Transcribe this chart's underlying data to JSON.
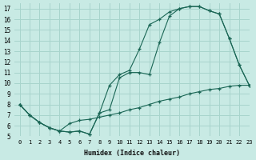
{
  "xlabel": "Humidex (Indice chaleur)",
  "xlim": [
    -0.5,
    23
  ],
  "ylim": [
    5,
    17.5
  ],
  "xticks": [
    0,
    1,
    2,
    3,
    4,
    5,
    6,
    7,
    8,
    9,
    10,
    11,
    12,
    13,
    14,
    15,
    16,
    17,
    18,
    19,
    20,
    21,
    22,
    23
  ],
  "yticks": [
    5,
    6,
    7,
    8,
    9,
    10,
    11,
    12,
    13,
    14,
    15,
    16,
    17
  ],
  "bg_color": "#c8eae4",
  "grid_color": "#a8d4cc",
  "line_color": "#1a6655",
  "line1_x": [
    0,
    1,
    2,
    3,
    4,
    5,
    6,
    7,
    8,
    9,
    10,
    11,
    12,
    13,
    14,
    15,
    16,
    17,
    18,
    19,
    20,
    21,
    22,
    23
  ],
  "line1_y": [
    8.0,
    7.0,
    6.3,
    5.8,
    5.5,
    5.4,
    5.5,
    5.2,
    7.2,
    9.8,
    10.8,
    11.2,
    13.2,
    15.5,
    16.0,
    16.7,
    17.0,
    17.2,
    17.2,
    16.8,
    16.5,
    14.2,
    11.7,
    9.8
  ],
  "line2_x": [
    0,
    1,
    2,
    3,
    4,
    5,
    6,
    7,
    8,
    9,
    10,
    11,
    12,
    13,
    14,
    15,
    16,
    17,
    18,
    19,
    20,
    21,
    22,
    23
  ],
  "line2_y": [
    8.0,
    7.0,
    6.3,
    5.8,
    5.5,
    5.4,
    5.5,
    5.2,
    7.2,
    7.5,
    10.5,
    11.0,
    11.0,
    10.8,
    13.8,
    16.3,
    17.0,
    17.2,
    17.2,
    16.8,
    16.5,
    14.2,
    11.7,
    9.8
  ],
  "line3_x": [
    0,
    1,
    2,
    3,
    4,
    5,
    6,
    7,
    8,
    9,
    10,
    11,
    12,
    13,
    14,
    15,
    16,
    17,
    18,
    19,
    20,
    21,
    22,
    23
  ],
  "line3_y": [
    8.0,
    7.0,
    6.3,
    5.8,
    5.5,
    6.2,
    6.5,
    6.6,
    6.8,
    7.0,
    7.2,
    7.5,
    7.7,
    8.0,
    8.3,
    8.5,
    8.7,
    9.0,
    9.2,
    9.4,
    9.5,
    9.7,
    9.8,
    9.8
  ]
}
